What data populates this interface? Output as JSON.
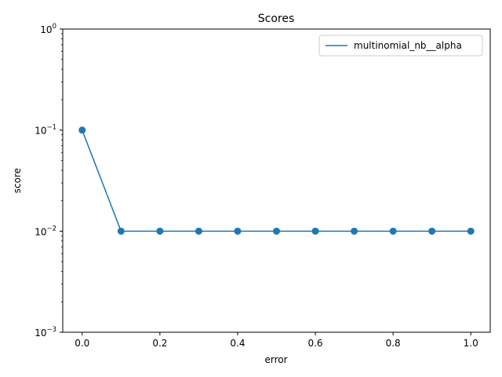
{
  "chart_data": {
    "type": "line",
    "title": "Scores",
    "xlabel": "error",
    "ylabel": "score",
    "yscale": "log",
    "xlim": [
      -0.05,
      1.05
    ],
    "ylim": [
      0.001,
      1
    ],
    "x_ticks": [
      {
        "value": 0.0,
        "label": "0.0"
      },
      {
        "value": 0.2,
        "label": "0.2"
      },
      {
        "value": 0.4,
        "label": "0.4"
      },
      {
        "value": 0.6,
        "label": "0.6"
      },
      {
        "value": 0.8,
        "label": "0.8"
      },
      {
        "value": 1.0,
        "label": "1.0"
      }
    ],
    "y_ticks": [
      {
        "value": 1,
        "base": "10",
        "exp": "0"
      },
      {
        "value": 0.1,
        "base": "10",
        "exp": "−1"
      },
      {
        "value": 0.01,
        "base": "10",
        "exp": "−2"
      },
      {
        "value": 0.001,
        "base": "10",
        "exp": "−3"
      }
    ],
    "grid": false,
    "legend_position": "top-right",
    "series": [
      {
        "name": "multinomial_nb__alpha",
        "color": "#1f77b4",
        "markers": true,
        "x": [
          0.0,
          0.1,
          0.2,
          0.3,
          0.4,
          0.5,
          0.6,
          0.7,
          0.8,
          0.9,
          1.0
        ],
        "y": [
          0.1,
          0.01,
          0.01,
          0.01,
          0.01,
          0.01,
          0.01,
          0.01,
          0.01,
          0.01,
          0.01
        ]
      }
    ]
  }
}
